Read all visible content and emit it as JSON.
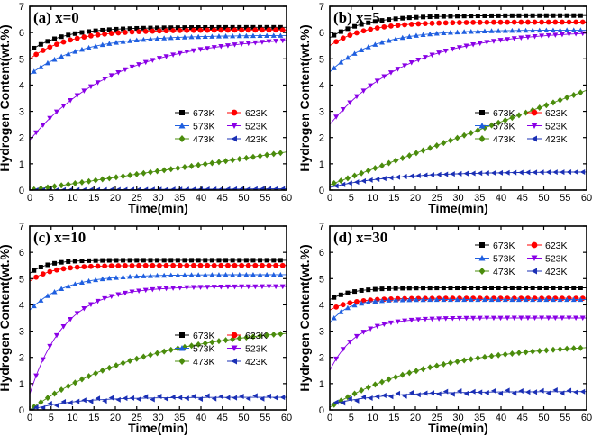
{
  "chart_data": [
    {
      "type": "scatter",
      "title": "(a) x=0",
      "xlabel": "Time(min)",
      "ylabel": "Hydrogen Content(wt.%)",
      "xlim": [
        0,
        60
      ],
      "ylim": [
        0,
        7
      ],
      "xticks": [
        "0",
        "5",
        "10",
        "15",
        "20",
        "25",
        "30",
        "35",
        "40",
        "45",
        "50",
        "55",
        "60"
      ],
      "yticks": [
        "0",
        "1",
        "2",
        "3",
        "4",
        "5",
        "6",
        "7"
      ],
      "legend_position": "center-right",
      "series": [
        {
          "name": "673K",
          "color": "#000000",
          "marker": "square",
          "model": {
            "a": 5.3,
            "b": 0.9,
            "tau": 8
          }
        },
        {
          "name": "623K",
          "color": "#ff0000",
          "marker": "circle",
          "model": {
            "a": 5.0,
            "b": 1.1,
            "tau": 9
          }
        },
        {
          "name": "573K",
          "color": "#1f5fe0",
          "marker": "triangle-up",
          "model": {
            "a": 4.4,
            "b": 1.5,
            "tau": 12
          }
        },
        {
          "name": "523K",
          "color": "#8a00e6",
          "marker": "triangle-down",
          "model": {
            "a": 1.9,
            "b": 4.0,
            "tau": 20
          }
        },
        {
          "name": "473K",
          "color": "#4a8c0c",
          "marker": "diamond",
          "model": {
            "a": 0.0,
            "b": 1.45,
            "tau": 0,
            "linear": true
          }
        },
        {
          "name": "423K",
          "color": "#1a2fb5",
          "marker": "triangle-left",
          "model": {
            "a": 0.0,
            "b": 0.05,
            "tau": 0,
            "linear": true
          }
        }
      ]
    },
    {
      "type": "scatter",
      "title": "(b) x=5",
      "xlabel": "Time(min)",
      "ylabel": "Hydrogen Content(wt.%)",
      "xlim": [
        0,
        60
      ],
      "ylim": [
        0,
        7
      ],
      "xticks": [
        "0",
        "5",
        "10",
        "15",
        "20",
        "25",
        "30",
        "35",
        "40",
        "45",
        "50",
        "55",
        "60"
      ],
      "yticks": [
        "0",
        "1",
        "2",
        "3",
        "4",
        "5",
        "6",
        "7"
      ],
      "legend_position": "center-right",
      "series": [
        {
          "name": "673K",
          "color": "#000000",
          "marker": "square",
          "model": {
            "a": 5.8,
            "b": 0.85,
            "tau": 8
          }
        },
        {
          "name": "623K",
          "color": "#ff0000",
          "marker": "circle",
          "model": {
            "a": 5.5,
            "b": 0.9,
            "tau": 8
          }
        },
        {
          "name": "573K",
          "color": "#1f5fe0",
          "marker": "triangle-up",
          "model": {
            "a": 4.5,
            "b": 1.6,
            "tau": 10
          }
        },
        {
          "name": "523K",
          "color": "#8a00e6",
          "marker": "triangle-down",
          "model": {
            "a": 2.5,
            "b": 3.6,
            "tau": 18
          }
        },
        {
          "name": "473K",
          "color": "#4a8c0c",
          "marker": "diamond",
          "model": {
            "a": 0.2,
            "b": 3.6,
            "tau": 0,
            "linear": true
          }
        },
        {
          "name": "423K",
          "color": "#1a2fb5",
          "marker": "triangle-left",
          "model": {
            "a": 0.1,
            "b": 0.6,
            "tau": 15
          }
        }
      ]
    },
    {
      "type": "scatter",
      "title": "(c) x=10",
      "xlabel": "Time(min)",
      "ylabel": "Hydrogen Content(wt.%)",
      "xlim": [
        0,
        60
      ],
      "ylim": [
        0,
        7
      ],
      "xticks": [
        "0",
        "5",
        "10",
        "15",
        "20",
        "25",
        "30",
        "35",
        "40",
        "45",
        "50",
        "55",
        "60"
      ],
      "yticks": [
        "0",
        "1",
        "2",
        "3",
        "4",
        "5",
        "6",
        "7"
      ],
      "legend_position": "lower-right",
      "series": [
        {
          "name": "673K",
          "color": "#000000",
          "marker": "square",
          "model": {
            "a": 5.2,
            "b": 0.5,
            "tau": 4
          }
        },
        {
          "name": "623K",
          "color": "#ff0000",
          "marker": "circle",
          "model": {
            "a": 4.9,
            "b": 0.6,
            "tau": 5
          }
        },
        {
          "name": "573K",
          "color": "#1f5fe0",
          "marker": "triangle-up",
          "model": {
            "a": 3.8,
            "b": 1.35,
            "tau": 8
          }
        },
        {
          "name": "523K",
          "color": "#8a00e6",
          "marker": "triangle-down",
          "model": {
            "a": 0.6,
            "b": 4.1,
            "tau": 8
          }
        },
        {
          "name": "473K",
          "color": "#4a8c0c",
          "marker": "diamond",
          "model": {
            "a": 0.0,
            "b": 3.3,
            "tau": 28
          }
        },
        {
          "name": "423K",
          "color": "#1a2fb5",
          "marker": "triangle-left",
          "model": {
            "a": 0.0,
            "b": 0.48,
            "tau": 10
          }
        }
      ]
    },
    {
      "type": "scatter",
      "title": "(d) x=30",
      "xlabel": "Time(min)",
      "ylabel": "Hydrogen Content(wt.%)",
      "xlim": [
        0,
        60
      ],
      "ylim": [
        0,
        7
      ],
      "xticks": [
        "0",
        "5",
        "10",
        "15",
        "20",
        "25",
        "30",
        "35",
        "40",
        "45",
        "50",
        "55",
        "60"
      ],
      "yticks": [
        "0",
        "1",
        "2",
        "3",
        "4",
        "5",
        "6",
        "7"
      ],
      "legend_position": "top-right",
      "series": [
        {
          "name": "673K",
          "color": "#000000",
          "marker": "square",
          "model": {
            "a": 4.2,
            "b": 0.45,
            "tau": 5
          }
        },
        {
          "name": "623K",
          "color": "#ff0000",
          "marker": "circle",
          "model": {
            "a": 3.8,
            "b": 0.45,
            "tau": 5
          }
        },
        {
          "name": "573K",
          "color": "#1f5fe0",
          "marker": "triangle-up",
          "model": {
            "a": 3.3,
            "b": 0.9,
            "tau": 4
          }
        },
        {
          "name": "523K",
          "color": "#8a00e6",
          "marker": "triangle-down",
          "model": {
            "a": 1.5,
            "b": 2.0,
            "tau": 6
          }
        },
        {
          "name": "473K",
          "color": "#4a8c0c",
          "marker": "diamond",
          "model": {
            "a": 0.1,
            "b": 2.5,
            "tau": 25
          }
        },
        {
          "name": "423K",
          "color": "#1a2fb5",
          "marker": "triangle-left",
          "model": {
            "a": 0.2,
            "b": 0.5,
            "tau": 12
          }
        }
      ]
    }
  ]
}
